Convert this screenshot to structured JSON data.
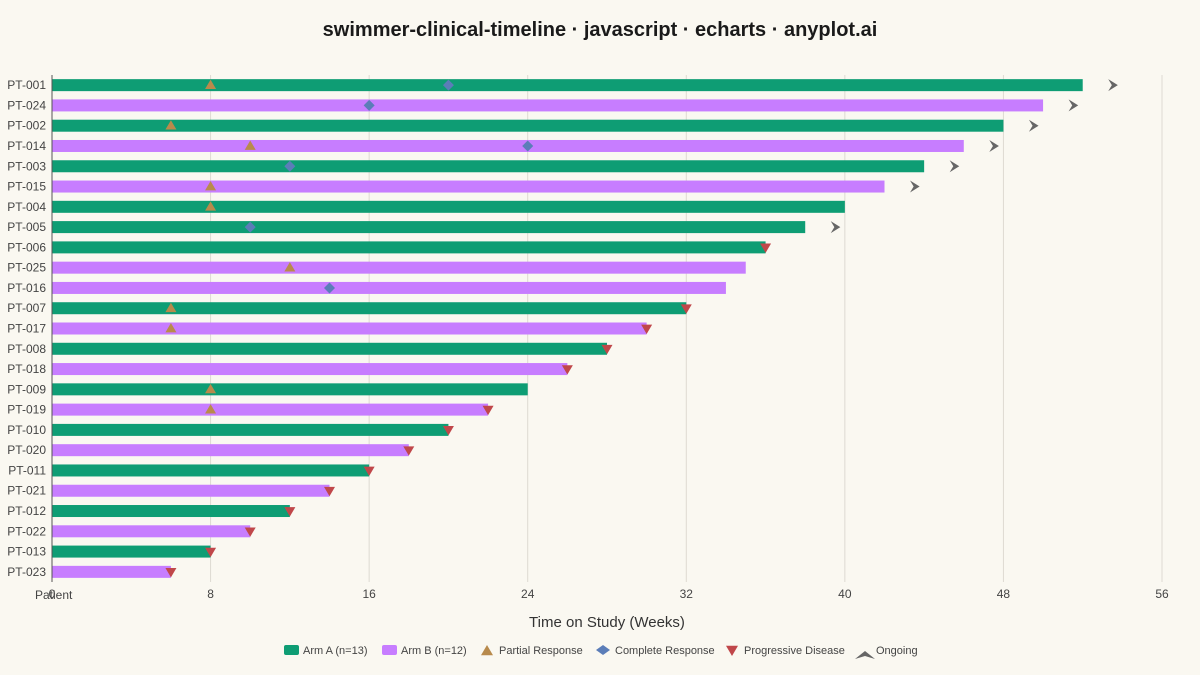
{
  "chart_data": {
    "type": "bar",
    "title": "swimmer-clinical-timeline · javascript · echarts · anyplot.ai",
    "xlabel": "Time on Study (Weeks)",
    "ylabel": "Patient",
    "xlim": [
      0,
      56
    ],
    "xticks": [
      0,
      8,
      16,
      24,
      32,
      40,
      48,
      56
    ],
    "grid": true,
    "legend_position": "bottom",
    "colors": {
      "arm_a": "#0E9D74",
      "arm_b": "#C77DFF",
      "partial_response": "#B88A4C",
      "complete_response": "#5B7DB8",
      "progressive_disease": "#C0474A",
      "ongoing": "#666666"
    },
    "legend": [
      {
        "key": "arm_a",
        "label": "Arm A (n=13)",
        "symbol": "rect"
      },
      {
        "key": "arm_b",
        "label": "Arm B (n=12)",
        "symbol": "rect"
      },
      {
        "key": "partial_response",
        "label": "Partial Response",
        "symbol": "triangle"
      },
      {
        "key": "complete_response",
        "label": "Complete Response",
        "symbol": "diamond"
      },
      {
        "key": "progressive_disease",
        "label": "Progressive Disease",
        "symbol": "triangle-down"
      },
      {
        "key": "ongoing",
        "label": "Ongoing",
        "symbol": "arrow"
      }
    ],
    "patients": [
      {
        "id": "PT-001",
        "arm": "A",
        "duration": 52,
        "pr": 8,
        "cr": 20,
        "pd": null,
        "ongoing": true
      },
      {
        "id": "PT-024",
        "arm": "B",
        "duration": 50,
        "pr": null,
        "cr": 16,
        "pd": null,
        "ongoing": true
      },
      {
        "id": "PT-002",
        "arm": "A",
        "duration": 48,
        "pr": 6,
        "cr": null,
        "pd": null,
        "ongoing": true
      },
      {
        "id": "PT-014",
        "arm": "B",
        "duration": 46,
        "pr": 10,
        "cr": 24,
        "pd": null,
        "ongoing": true
      },
      {
        "id": "PT-003",
        "arm": "A",
        "duration": 44,
        "pr": null,
        "cr": 12,
        "pd": null,
        "ongoing": true
      },
      {
        "id": "PT-015",
        "arm": "B",
        "duration": 42,
        "pr": 8,
        "cr": null,
        "pd": null,
        "ongoing": true
      },
      {
        "id": "PT-004",
        "arm": "A",
        "duration": 40,
        "pr": 8,
        "cr": null,
        "pd": null,
        "ongoing": false
      },
      {
        "id": "PT-005",
        "arm": "A",
        "duration": 38,
        "pr": null,
        "cr": 10,
        "pd": null,
        "ongoing": true
      },
      {
        "id": "PT-006",
        "arm": "A",
        "duration": 36,
        "pr": null,
        "cr": null,
        "pd": 36,
        "ongoing": false
      },
      {
        "id": "PT-025",
        "arm": "B",
        "duration": 35,
        "pr": 12,
        "cr": null,
        "pd": null,
        "ongoing": false
      },
      {
        "id": "PT-016",
        "arm": "B",
        "duration": 34,
        "pr": null,
        "cr": 14,
        "pd": null,
        "ongoing": false
      },
      {
        "id": "PT-007",
        "arm": "A",
        "duration": 32,
        "pr": 6,
        "cr": null,
        "pd": 32,
        "ongoing": false
      },
      {
        "id": "PT-017",
        "arm": "B",
        "duration": 30,
        "pr": 6,
        "cr": null,
        "pd": 30,
        "ongoing": false
      },
      {
        "id": "PT-008",
        "arm": "A",
        "duration": 28,
        "pr": null,
        "cr": null,
        "pd": 28,
        "ongoing": false
      },
      {
        "id": "PT-018",
        "arm": "B",
        "duration": 26,
        "pr": null,
        "cr": null,
        "pd": 26,
        "ongoing": false
      },
      {
        "id": "PT-009",
        "arm": "A",
        "duration": 24,
        "pr": 8,
        "cr": null,
        "pd": null,
        "ongoing": false
      },
      {
        "id": "PT-019",
        "arm": "B",
        "duration": 22,
        "pr": 8,
        "cr": null,
        "pd": 22,
        "ongoing": false
      },
      {
        "id": "PT-010",
        "arm": "A",
        "duration": 20,
        "pr": null,
        "cr": null,
        "pd": 20,
        "ongoing": false
      },
      {
        "id": "PT-020",
        "arm": "B",
        "duration": 18,
        "pr": null,
        "cr": null,
        "pd": 18,
        "ongoing": false
      },
      {
        "id": "PT-011",
        "arm": "A",
        "duration": 16,
        "pr": null,
        "cr": null,
        "pd": 16,
        "ongoing": false
      },
      {
        "id": "PT-021",
        "arm": "B",
        "duration": 14,
        "pr": null,
        "cr": null,
        "pd": 14,
        "ongoing": false
      },
      {
        "id": "PT-012",
        "arm": "A",
        "duration": 12,
        "pr": null,
        "cr": null,
        "pd": 12,
        "ongoing": false
      },
      {
        "id": "PT-022",
        "arm": "B",
        "duration": 10,
        "pr": null,
        "cr": null,
        "pd": 10,
        "ongoing": false
      },
      {
        "id": "PT-013",
        "arm": "A",
        "duration": 8,
        "pr": null,
        "cr": null,
        "pd": 8,
        "ongoing": false
      },
      {
        "id": "PT-023",
        "arm": "B",
        "duration": 6,
        "pr": null,
        "cr": null,
        "pd": 6,
        "ongoing": false
      }
    ]
  }
}
